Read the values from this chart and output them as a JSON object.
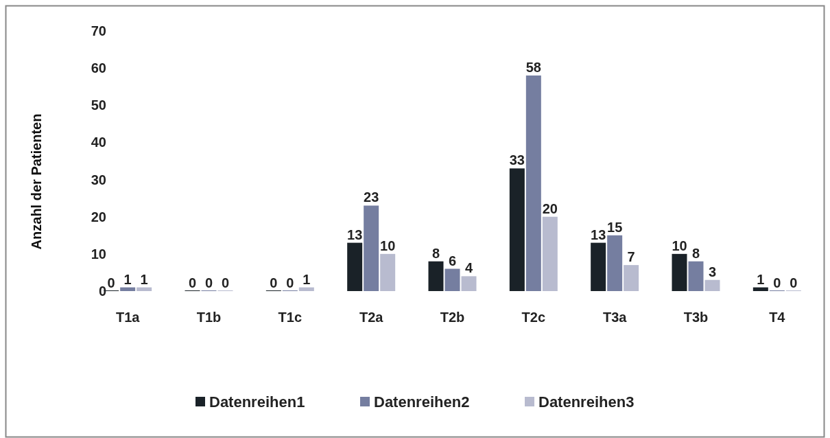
{
  "chart_data": {
    "type": "bar",
    "ylabel": "Anzahl der Patienten",
    "categories": [
      "T1a",
      "T1b",
      "T1c",
      "T2a",
      "T2b",
      "T2c",
      "T3a",
      "T3b",
      "T4"
    ],
    "series": [
      {
        "name": "Datenreihen1",
        "color": "#1a2228",
        "values": [
          0,
          0,
          0,
          13,
          8,
          33,
          13,
          10,
          1
        ]
      },
      {
        "name": "Datenreihen2",
        "color": "#757ea0",
        "values": [
          1,
          0,
          0,
          23,
          6,
          58,
          15,
          8,
          0
        ]
      },
      {
        "name": "Datenreihen3",
        "color": "#b8bbcf",
        "values": [
          1,
          0,
          1,
          10,
          4,
          20,
          7,
          3,
          0
        ]
      }
    ],
    "ylim": [
      0,
      70
    ],
    "yticks": [
      0,
      10,
      20,
      30,
      40,
      50,
      60,
      70
    ],
    "data_labels": true,
    "grid": false,
    "legend": "bottom"
  }
}
